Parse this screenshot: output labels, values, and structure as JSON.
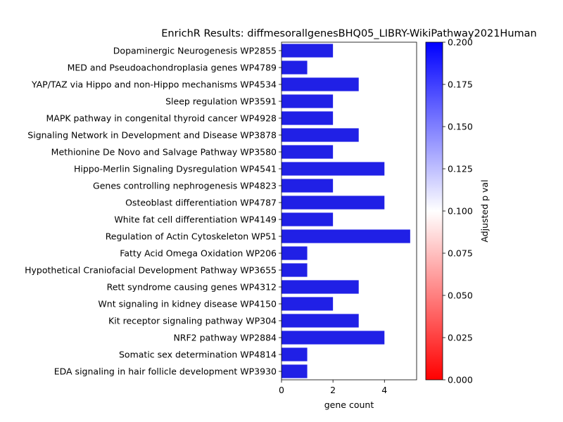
{
  "chart_data": {
    "type": "bar",
    "orientation": "horizontal",
    "title": "EnrichR Results: diffmesorallgenesBHQ05_LIBRY-WikiPathway2021Human",
    "xlabel": "gene count",
    "ylabel": "",
    "xlim": [
      0,
      5.25
    ],
    "xticks": [
      0,
      2,
      4
    ],
    "categories": [
      "Dopaminergic Neurogenesis WP2855",
      "MED and Pseudoachondroplasia genes WP4789",
      "YAP/TAZ via Hippo and non-Hippo mechanisms WP4534",
      "Sleep regulation WP3591",
      "MAPK pathway in congenital thyroid cancer WP4928",
      "Signaling Network in Development and Disease  WP3878",
      "Methionine De Novo and Salvage Pathway WP3580",
      "Hippo-Merlin Signaling Dysregulation WP4541",
      "Genes controlling nephrogenesis WP4823",
      "Osteoblast differentiation WP4787",
      "White fat cell differentiation WP4149",
      "Regulation of Actin Cytoskeleton WP51",
      "Fatty Acid Omega Oxidation WP206",
      "Hypothetical Craniofacial Development Pathway WP3655",
      "Rett syndrome causing genes WP4312",
      "Wnt signaling in kidney disease WP4150",
      "Kit receptor signaling pathway WP304",
      "NRF2 pathway WP2884",
      "Somatic sex determination WP4814",
      "EDA signaling in hair follicle development WP3930"
    ],
    "values": [
      2,
      1,
      3,
      2,
      2,
      3,
      2,
      4,
      2,
      4,
      2,
      5,
      1,
      1,
      3,
      2,
      3,
      4,
      1,
      1
    ],
    "bar_color": "#2020e6",
    "colorbar": {
      "label": "Adjusted p val",
      "range": [
        0,
        0.2
      ],
      "ticks": [
        "0.000",
        "0.025",
        "0.050",
        "0.075",
        "0.100",
        "0.125",
        "0.150",
        "0.175",
        "0.200"
      ],
      "colors": [
        "#ff0000",
        "#ffffff",
        "#0000ff"
      ]
    },
    "legend": "none",
    "grid": false
  }
}
